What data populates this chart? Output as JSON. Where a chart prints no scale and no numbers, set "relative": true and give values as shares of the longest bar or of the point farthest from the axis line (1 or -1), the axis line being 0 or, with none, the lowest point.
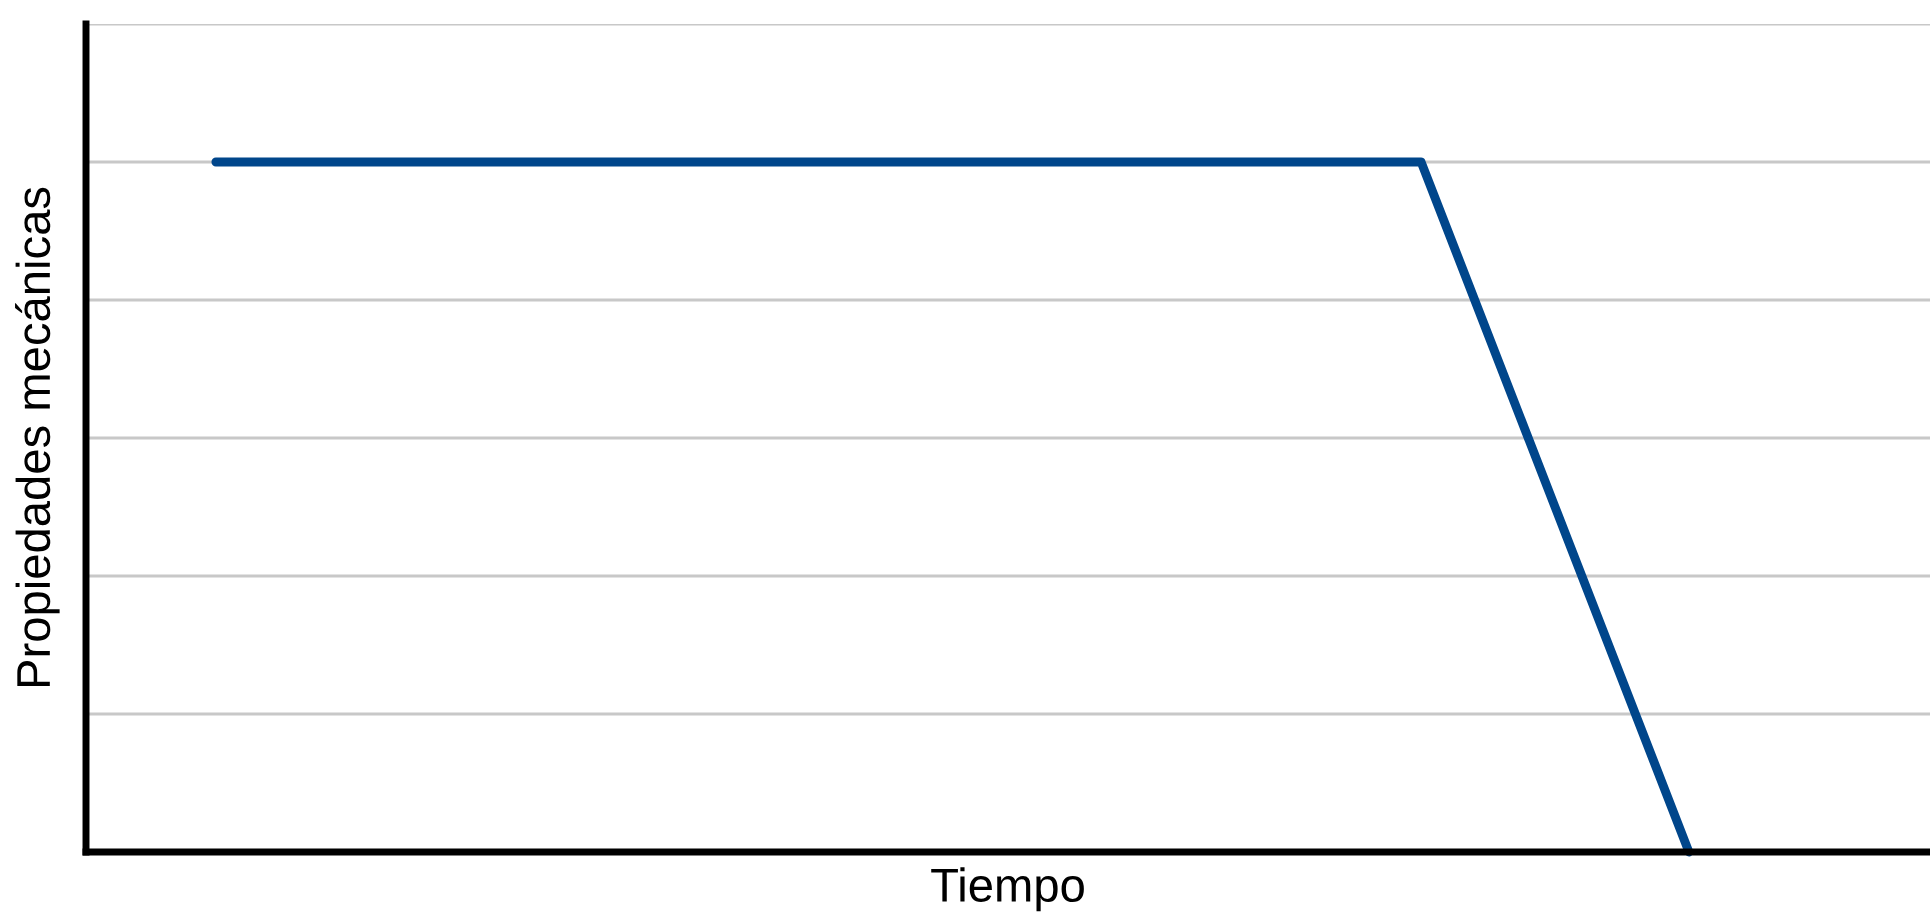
{
  "chart_data": {
    "type": "line",
    "relative": true,
    "xlabel": "Tiempo",
    "ylabel": "Propiedades mecánicas",
    "grid": "y",
    "legend": false,
    "marker": "none",
    "line_style": "solid",
    "categories": [
      null,
      null,
      null,
      null,
      null,
      null,
      null,
      null,
      null,
      null,
      null,
      null
    ],
    "series": [
      {
        "color": "#00468b",
        "values": [
          1,
          1,
          1,
          1,
          1,
          1,
          1,
          1,
          1,
          1,
          0.5,
          0
        ]
      }
    ]
  }
}
